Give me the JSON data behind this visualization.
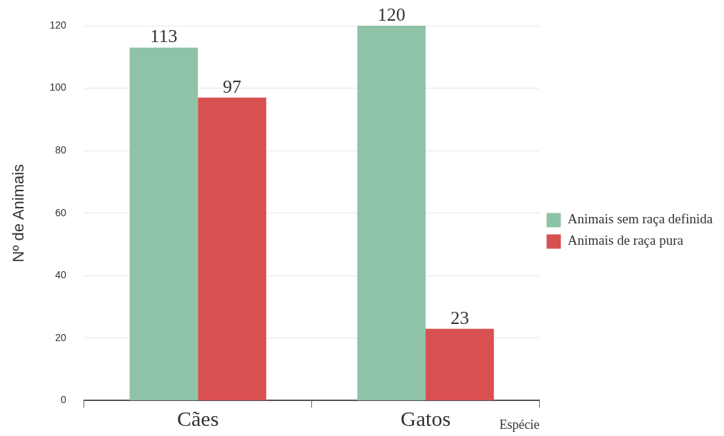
{
  "chart_data": {
    "type": "bar",
    "xlabel": "Espécie",
    "ylabel": "Nº de Animais",
    "categories": [
      "Cães",
      "Gatos"
    ],
    "series": [
      {
        "name": "Animais sem raça definida",
        "color": "#8ec3a7",
        "values": [
          113,
          120
        ]
      },
      {
        "name": "Animais de raça pura",
        "color": "#d95050",
        "values": [
          97,
          23
        ]
      }
    ],
    "ylim": [
      0,
      120
    ],
    "yticks": [
      0,
      20,
      40,
      60,
      80,
      100,
      120
    ],
    "grid": "y",
    "legend": "right",
    "data_labels": true
  }
}
